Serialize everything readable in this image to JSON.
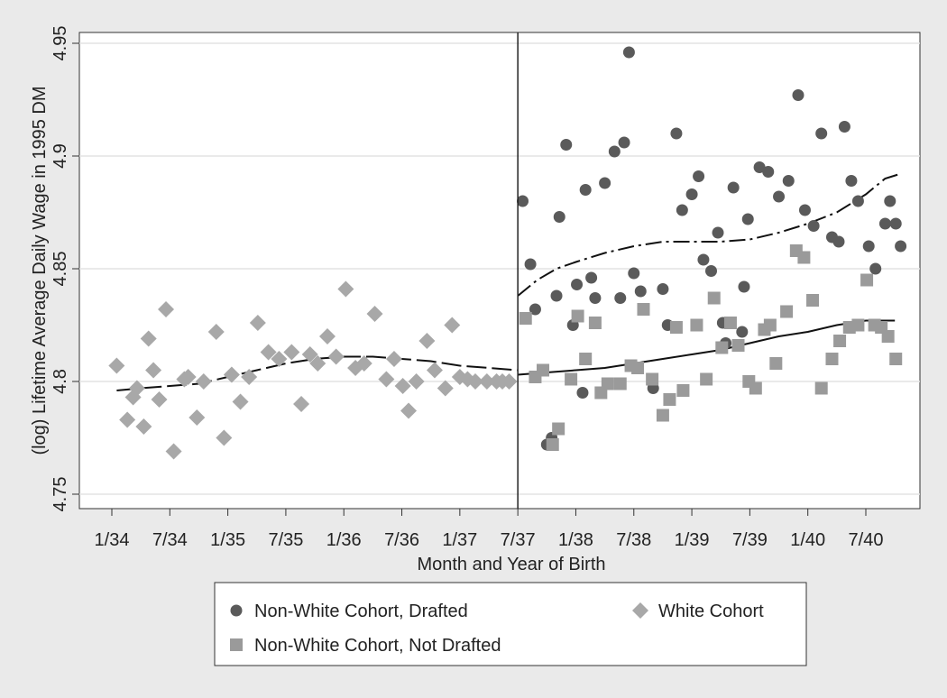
{
  "chart_data": {
    "type": "scatter",
    "title": "",
    "xlabel": "Month and Year of Birth",
    "ylabel": "(log) Lifetime Average Daily Wage in 1995 DM",
    "xlim": [
      0,
      85
    ],
    "ylim": [
      4.75,
      4.95
    ],
    "x_tick_labels": [
      {
        "x": 0,
        "label": "1/34"
      },
      {
        "x": 6,
        "label": "7/34"
      },
      {
        "x": 12,
        "label": "1/35"
      },
      {
        "x": 18,
        "label": "7/35"
      },
      {
        "x": 24,
        "label": "1/36"
      },
      {
        "x": 30,
        "label": "7/36"
      },
      {
        "x": 36,
        "label": "1/37"
      },
      {
        "x": 42,
        "label": "7/37"
      },
      {
        "x": 48,
        "label": "1/38"
      },
      {
        "x": 54,
        "label": "7/38"
      },
      {
        "x": 60,
        "label": "1/39"
      },
      {
        "x": 66,
        "label": "7/39"
      },
      {
        "x": 72,
        "label": "1/40"
      },
      {
        "x": 78,
        "label": "7/40"
      }
    ],
    "y_ticks": [
      4.75,
      4.8,
      4.85,
      4.9,
      4.95
    ],
    "y_tick_labels": [
      "4.75",
      "4.8",
      "4.85",
      "4.9",
      "4.95"
    ],
    "grid": "horizontal",
    "cutoff_x": 42,
    "legend_position": "bottom",
    "series": [
      {
        "name": "Non-White Cohort, Drafted",
        "marker": "circle",
        "color": "#5a5a5a",
        "x": [
          42.5,
          43.3,
          43.8,
          45,
          45.5,
          46,
          46.3,
          47,
          47.7,
          48.1,
          48.7,
          49,
          49.6,
          50,
          51,
          52,
          52.6,
          53,
          53.5,
          54,
          54.7,
          56,
          57,
          57.5,
          58.4,
          59,
          60,
          60.7,
          61.2,
          62,
          62.7,
          63.2,
          63.5,
          64.3,
          65.2,
          65.4,
          65.8,
          67,
          67.9,
          69,
          70,
          71,
          71.7,
          72.6,
          73.4,
          74.5,
          75.2,
          75.8,
          76.5,
          77.2,
          78.3,
          79,
          80,
          80.5,
          81.1,
          81.6
        ],
        "y": [
          4.88,
          4.852,
          4.832,
          4.772,
          4.775,
          4.838,
          4.873,
          4.905,
          4.825,
          4.843,
          4.795,
          4.885,
          4.846,
          4.837,
          4.888,
          4.902,
          4.837,
          4.906,
          4.946,
          4.848,
          4.84,
          4.797,
          4.841,
          4.825,
          4.91,
          4.876,
          4.883,
          4.891,
          4.854,
          4.849,
          4.866,
          4.826,
          4.817,
          4.886,
          4.822,
          4.842,
          4.872,
          4.895,
          4.893,
          4.882,
          4.889,
          4.927,
          4.876,
          4.869,
          4.91,
          4.864,
          4.862,
          4.913,
          4.889,
          4.88,
          4.86,
          4.85,
          4.87,
          4.88,
          4.87,
          4.86
        ]
      },
      {
        "name": "Non-White Cohort, Not Drafted",
        "marker": "square",
        "color": "#9a9a9a",
        "x": [
          42.8,
          43.8,
          44.6,
          45.6,
          46.2,
          47.5,
          48.2,
          49,
          50,
          50.6,
          51.3,
          52.6,
          53.7,
          54.4,
          55,
          55.9,
          57,
          57.7,
          58.4,
          59.1,
          60.5,
          61.5,
          62.3,
          63.1,
          64,
          64.8,
          65.9,
          66.6,
          67.5,
          68.1,
          68.7,
          69.8,
          70.8,
          71.6,
          72.5,
          73.4,
          74.5,
          75.3,
          76.3,
          77.2,
          78.1,
          78.9,
          79.6,
          80.3,
          81.1
        ],
        "y": [
          4.828,
          4.802,
          4.805,
          4.772,
          4.779,
          4.801,
          4.829,
          4.81,
          4.826,
          4.795,
          4.799,
          4.799,
          4.807,
          4.806,
          4.832,
          4.801,
          4.785,
          4.792,
          4.824,
          4.796,
          4.825,
          4.801,
          4.837,
          4.815,
          4.826,
          4.816,
          4.8,
          4.797,
          4.823,
          4.825,
          4.808,
          4.831,
          4.858,
          4.855,
          4.836,
          4.797,
          4.81,
          4.818,
          4.824,
          4.825,
          4.845,
          4.825,
          4.824,
          4.82,
          4.81
        ]
      },
      {
        "name": "White Cohort",
        "marker": "diamond",
        "color": "#a8a8a8",
        "x": [
          0.5,
          1.6,
          2.2,
          2.6,
          3.3,
          3.8,
          4.3,
          4.9,
          5.6,
          6.4,
          7.5,
          7.9,
          8.8,
          9.5,
          10.8,
          11.6,
          12.4,
          13.3,
          14.2,
          15.1,
          16.2,
          17.3,
          18.6,
          19.6,
          20.5,
          21.3,
          22.3,
          23.2,
          24.2,
          25.2,
          26.1,
          27.2,
          28.4,
          29.2,
          30.1,
          30.7,
          31.5,
          32.6,
          33.4,
          34.5,
          35.2,
          36,
          36.8,
          37.6,
          38.8,
          39.8,
          40.4,
          41.1
        ],
        "y": [
          4.807,
          4.783,
          4.793,
          4.797,
          4.78,
          4.819,
          4.805,
          4.792,
          4.832,
          4.769,
          4.801,
          4.802,
          4.784,
          4.8,
          4.822,
          4.775,
          4.803,
          4.791,
          4.802,
          4.826,
          4.813,
          4.81,
          4.813,
          4.79,
          4.812,
          4.808,
          4.82,
          4.811,
          4.841,
          4.806,
          4.808,
          4.83,
          4.801,
          4.81,
          4.798,
          4.787,
          4.8,
          4.818,
          4.805,
          4.797,
          4.825,
          4.802,
          4.801,
          4.8,
          4.8,
          4.8,
          4.8,
          4.8
        ]
      }
    ],
    "fitted_lines": [
      {
        "style": "long-dash",
        "x": [
          0.5,
          3,
          6,
          9,
          12,
          15,
          18,
          21,
          24,
          27,
          30,
          33,
          36,
          39,
          42
        ],
        "y": [
          4.796,
          4.797,
          4.798,
          4.799,
          4.802,
          4.805,
          4.808,
          4.81,
          4.811,
          4.811,
          4.81,
          4.809,
          4.807,
          4.806,
          4.805
        ]
      },
      {
        "style": "solid",
        "x": [
          42,
          45,
          48,
          51,
          54,
          57,
          60,
          63,
          66,
          69,
          72,
          75,
          78,
          81
        ],
        "y": [
          4.803,
          4.804,
          4.805,
          4.806,
          4.808,
          4.81,
          4.812,
          4.814,
          4.817,
          4.82,
          4.822,
          4.825,
          4.827,
          4.827
        ]
      },
      {
        "style": "dash-dot",
        "x": [
          42,
          44,
          46,
          48,
          51,
          54,
          57,
          60,
          63,
          66,
          69,
          72,
          75,
          78,
          80,
          81.5
        ],
        "y": [
          4.838,
          4.845,
          4.85,
          4.853,
          4.857,
          4.86,
          4.862,
          4.862,
          4.862,
          4.863,
          4.866,
          4.87,
          4.875,
          4.883,
          4.89,
          4.892
        ]
      }
    ],
    "legend": [
      {
        "label": "Non-White Cohort, Drafted",
        "marker": "circle"
      },
      {
        "label": "White Cohort",
        "marker": "diamond"
      },
      {
        "label": "Non-White Cohort, Not Drafted",
        "marker": "square"
      }
    ]
  }
}
